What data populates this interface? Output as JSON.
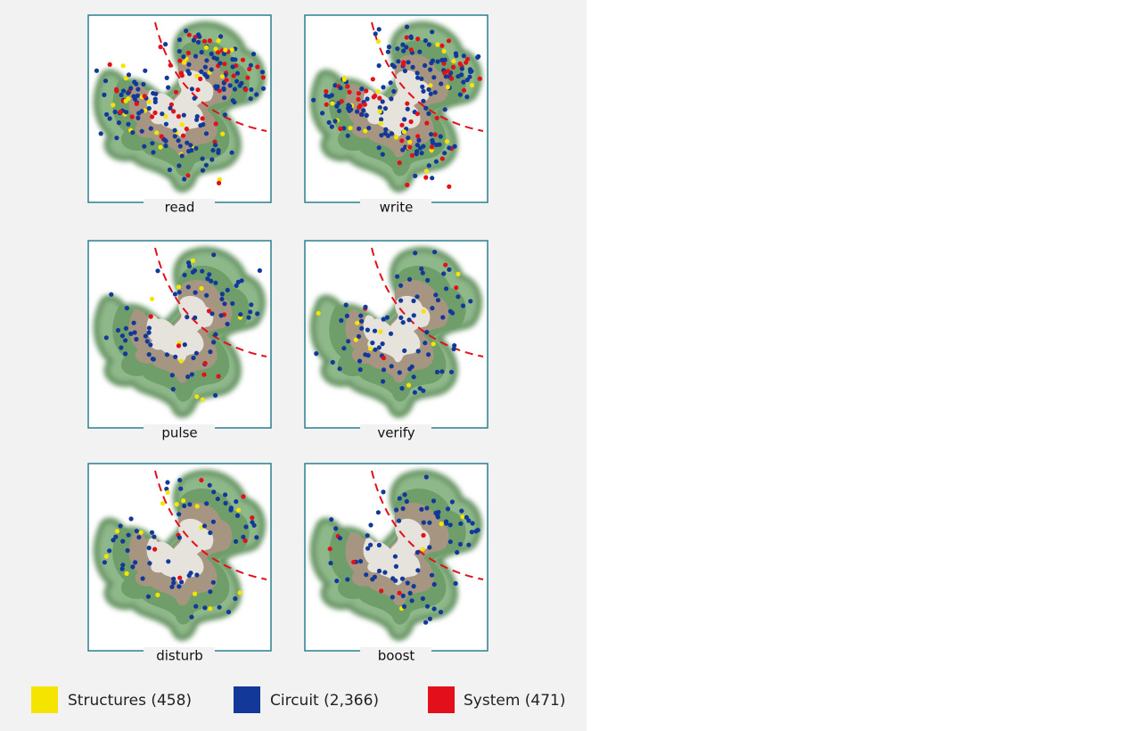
{
  "panels": [
    {
      "label": "read"
    },
    {
      "label": "write"
    },
    {
      "label": "pulse"
    },
    {
      "label": "verify"
    },
    {
      "label": "disturb"
    },
    {
      "label": "boost"
    }
  ],
  "legend": [
    {
      "label": "Structures (458)",
      "color": "#f5e400"
    },
    {
      "label": "Circuit (2,366)",
      "color": "#12399a"
    },
    {
      "label": "System (471)",
      "color": "#e3101b"
    }
  ]
}
